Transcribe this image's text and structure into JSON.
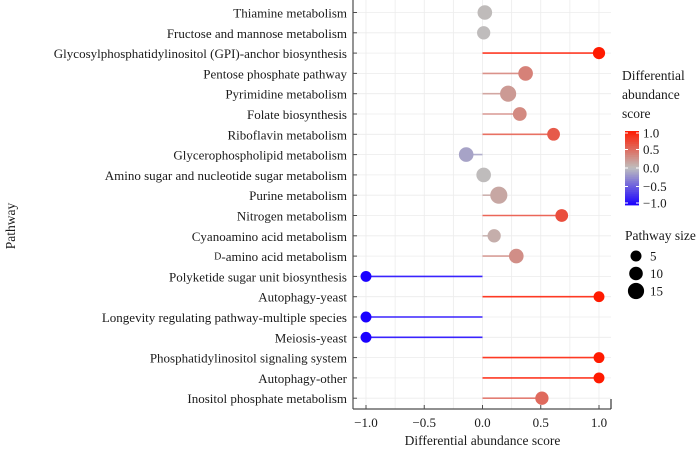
{
  "chart_data": {
    "type": "lollipop",
    "title": "",
    "xlabel": "Differential abundance score",
    "ylabel": "Pathway",
    "xlim": [
      -1.1,
      1.1
    ],
    "xticks": [
      -1.0,
      -0.5,
      0.0,
      0.5,
      1.0
    ],
    "xtick_labels": [
      "−1.0",
      "−0.5",
      "0.0",
      "0.5",
      "1.0"
    ],
    "grid": true,
    "baseline": 0.0,
    "categories": [
      "Thiamine metabolism",
      "Fructose and mannose metabolism",
      "Glycosylphosphatidylinositol (GPI)-anchor biosynthesis",
      "Pentose phosphate pathway",
      "Pyrimidine metabolism",
      "Folate biosynthesis",
      "Riboflavin metabolism",
      "Glycerophospholipid metabolism",
      "Amino sugar and nucleotide sugar metabolism",
      "Purine metabolism",
      "Nitrogen metabolism",
      "Cyanoamino acid metabolism",
      "D-amino acid metabolism",
      "Polyketide sugar unit biosynthesis",
      "Autophagy-yeast",
      "Longevity regulating pathway-multiple species",
      "Meiosis-yeast",
      "Phosphatidylinositol signaling system",
      "Autophagy-other",
      "Inositol phosphate metabolism"
    ],
    "series": [
      {
        "name": "Differential abundance score",
        "values": [
          0.02,
          0.01,
          1.0,
          0.37,
          0.22,
          0.32,
          0.61,
          -0.14,
          0.01,
          0.14,
          0.68,
          0.1,
          0.29,
          -1.0,
          1.0,
          -1.0,
          -1.0,
          1.0,
          1.0,
          0.51
        ]
      },
      {
        "name": "Pathway size",
        "values": [
          10,
          7,
          5,
          10,
          14,
          8,
          6,
          10,
          10,
          17,
          6,
          7,
          10,
          3,
          3,
          3,
          3,
          3,
          3,
          7
        ]
      }
    ],
    "color_legend": {
      "title_lines": [
        "Differential",
        "abundance",
        "score"
      ],
      "ticks": [
        1.0,
        0.5,
        0.0,
        -0.5,
        -1.0
      ],
      "tick_labels": [
        "1.0",
        "0.5",
        "0.0",
        "−0.5",
        "−1.0"
      ],
      "low_color": "#1a00ff",
      "mid_color": "#bebebe",
      "high_color": "#ff1a00",
      "placement": "right"
    },
    "size_legend": {
      "title": "Pathway size",
      "values": [
        5,
        10,
        15
      ],
      "labels": [
        "5",
        "10",
        "15"
      ],
      "color": "#000000",
      "placement": "right"
    }
  }
}
